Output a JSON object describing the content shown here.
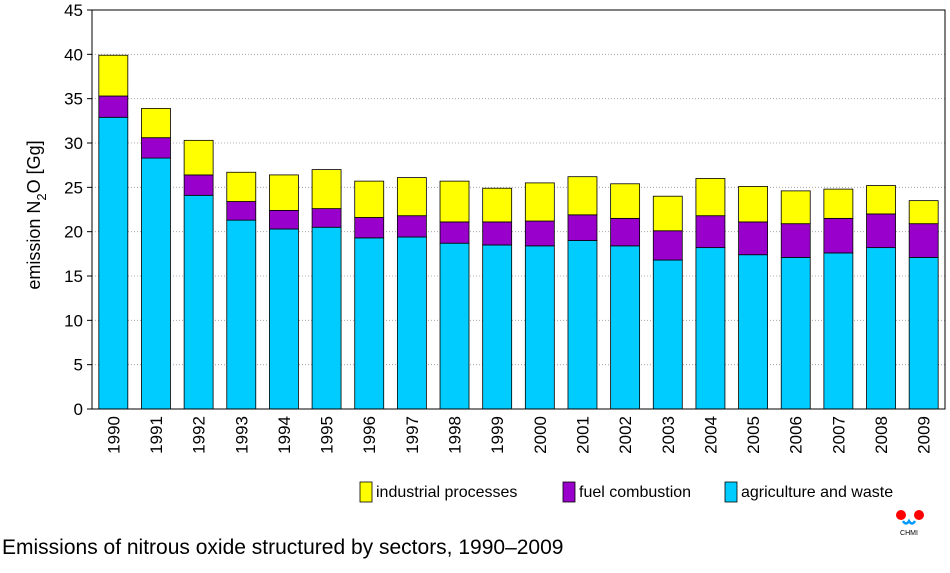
{
  "chart_data": {
    "type": "bar",
    "stacked": true,
    "categories": [
      "1990",
      "1991",
      "1992",
      "1993",
      "1994",
      "1995",
      "1996",
      "1997",
      "1998",
      "1999",
      "2000",
      "2001",
      "2002",
      "2003",
      "2004",
      "2005",
      "2006",
      "2007",
      "2008",
      "2009"
    ],
    "series": [
      {
        "name": "agriculture and waste",
        "color": "#00ccff",
        "values": [
          32.9,
          28.3,
          24.1,
          21.3,
          20.3,
          20.5,
          19.3,
          19.4,
          18.7,
          18.5,
          18.4,
          19.0,
          18.4,
          16.8,
          18.2,
          17.4,
          17.1,
          17.6,
          18.2,
          17.1
        ]
      },
      {
        "name": "fuel combustion",
        "color": "#9900cc",
        "values": [
          2.4,
          2.3,
          2.3,
          2.1,
          2.1,
          2.1,
          2.3,
          2.4,
          2.4,
          2.6,
          2.8,
          2.9,
          3.1,
          3.3,
          3.6,
          3.7,
          3.8,
          3.9,
          3.8,
          3.8
        ]
      },
      {
        "name": "industrial processes",
        "color": "#ffff00",
        "values": [
          4.6,
          3.3,
          3.9,
          3.3,
          4.0,
          4.4,
          4.1,
          4.3,
          4.6,
          3.8,
          4.3,
          4.3,
          3.9,
          3.9,
          4.2,
          4.0,
          3.7,
          3.3,
          3.2,
          2.6
        ]
      }
    ],
    "ylim": [
      0,
      45
    ],
    "yticks": [
      0,
      5,
      10,
      15,
      20,
      25,
      30,
      35,
      40,
      45
    ],
    "ylabel": {
      "prefix": "emission N",
      "sub": "2",
      "suffix": "O [Gg]"
    },
    "grid": true,
    "legend_position": "bottom-right",
    "legend_order": [
      "industrial processes",
      "fuel combustion",
      "agriculture and waste"
    ]
  },
  "caption": "Emissions of nitrous oxide structured by sectors, 1990–2009",
  "logo": {
    "text": "CHMI",
    "colors": [
      "#ff0000",
      "#0099ff"
    ]
  }
}
